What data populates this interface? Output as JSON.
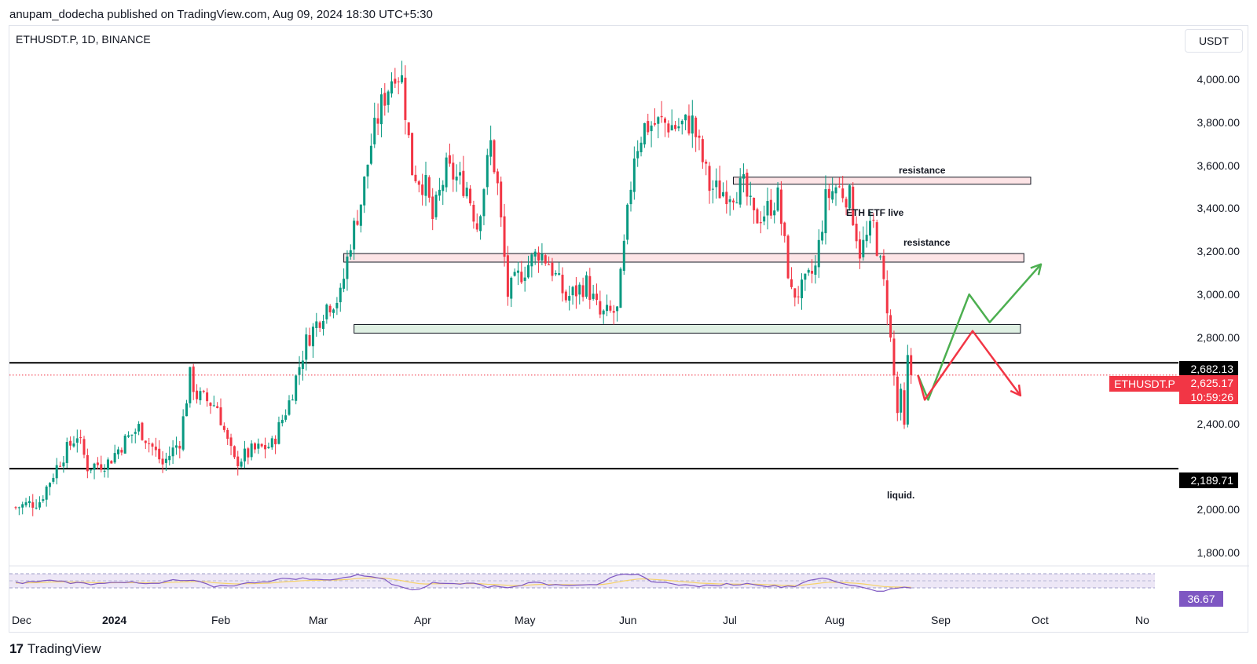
{
  "header": {
    "attribution": "anupam_dodecha published on TradingView.com, Aug 09, 2024 18:30 UTC+5:30"
  },
  "chart_header": {
    "symbol_info": "ETHUSDT.P, 1D, BINANCE",
    "currency_button": "USDT"
  },
  "price_tags": {
    "upper_line": "2,682.13",
    "current": "2,625.17",
    "countdown": "10:59:26",
    "symbol": "ETHUSDT.P",
    "lower_line": "2,189.71",
    "rsi": "36.67"
  },
  "annotations": {
    "resistance_top": "resistance",
    "etf": "ETH ETF live",
    "resistance_mid": "resistance",
    "liquid": "liquid."
  },
  "footer": {
    "logo_text": "TradingView"
  },
  "colors": {
    "up": "#089981",
    "down": "#f23645",
    "resistance_fill": "#fde4e6",
    "support_fill": "#dff0e3",
    "rsi_line": "#7e57c2",
    "rsi_ma": "#f5d26b",
    "arrow_up": "#4caf50",
    "arrow_down": "#f23645"
  },
  "chart_data": {
    "type": "candlestick",
    "symbol": "ETHUSDT.P",
    "timeframe": "1D",
    "exchange": "BINANCE",
    "ylim": [
      1700,
      4150
    ],
    "y_ticks": [
      1800,
      2000,
      2400,
      2800,
      3000,
      3200,
      3400,
      3600,
      3800,
      4000
    ],
    "y_tick_labels": [
      "1,800.00",
      "2,000.00",
      "2,400.00",
      "2,800.00",
      "3,000.00",
      "3,200.00",
      "3,400.00",
      "3,600.00",
      "3,800.00",
      "4,000.00"
    ],
    "x_ticks": [
      "Dec",
      "2024",
      "Feb",
      "Mar",
      "Apr",
      "May",
      "Jun",
      "Jul",
      "Aug",
      "Sep",
      "Oct",
      "No"
    ],
    "horizontal_lines": [
      2682.13,
      2189.71
    ],
    "current_price": 2625.17,
    "zones": [
      {
        "kind": "resistance",
        "from": 3515,
        "to": 3545,
        "start": "2024-06-18",
        "end": "2024-09-13"
      },
      {
        "kind": "resistance",
        "from": 3150,
        "to": 3190,
        "start": "2024-02-25",
        "end": "2024-09-11"
      },
      {
        "kind": "support",
        "from": 2820,
        "to": 2860,
        "start": "2024-02-28",
        "end": "2024-09-10"
      }
    ],
    "projections": [
      {
        "color": "green",
        "points": [
          [
            "2024-08-11",
            2625
          ],
          [
            "2024-08-14",
            2510
          ],
          [
            "2024-08-26",
            3000
          ],
          [
            "2024-09-01",
            2870
          ],
          [
            "2024-09-16",
            3140
          ]
        ]
      },
      {
        "color": "red",
        "points": [
          [
            "2024-08-11",
            2625
          ],
          [
            "2024-08-13",
            2510
          ],
          [
            "2024-08-27",
            2830
          ],
          [
            "2024-09-10",
            2530
          ]
        ]
      }
    ],
    "close_path": [
      [
        "2023-11-21",
        2010
      ],
      [
        "2023-11-28",
        2040
      ],
      [
        "2023-12-04",
        2230
      ],
      [
        "2023-12-09",
        2350
      ],
      [
        "2023-12-12",
        2200
      ],
      [
        "2023-12-18",
        2220
      ],
      [
        "2023-12-23",
        2320
      ],
      [
        "2023-12-27",
        2380
      ],
      [
        "2023-12-31",
        2290
      ],
      [
        "2024-01-03",
        2210
      ],
      [
        "2024-01-08",
        2320
      ],
      [
        "2024-01-11",
        2620
      ],
      [
        "2024-01-13",
        2530
      ],
      [
        "2024-01-19",
        2480
      ],
      [
        "2024-01-22",
        2310
      ],
      [
        "2024-01-24",
        2220
      ],
      [
        "2024-01-29",
        2270
      ],
      [
        "2024-02-04",
        2300
      ],
      [
        "2024-02-09",
        2500
      ],
      [
        "2024-02-14",
        2780
      ],
      [
        "2024-02-20",
        2950
      ],
      [
        "2024-02-24",
        2990
      ],
      [
        "2024-02-27",
        3250
      ],
      [
        "2024-03-01",
        3430
      ],
      [
        "2024-03-04",
        3700
      ],
      [
        "2024-03-07",
        3880
      ],
      [
        "2024-03-11",
        4050
      ],
      [
        "2024-03-13",
        4000
      ],
      [
        "2024-03-16",
        3580
      ],
      [
        "2024-03-20",
        3500
      ],
      [
        "2024-03-22",
        3350
      ],
      [
        "2024-03-26",
        3580
      ],
      [
        "2024-04-01",
        3500
      ],
      [
        "2024-04-04",
        3320
      ],
      [
        "2024-04-08",
        3700
      ],
      [
        "2024-04-10",
        3500
      ],
      [
        "2024-04-13",
        3000
      ],
      [
        "2024-04-16",
        3080
      ],
      [
        "2024-04-22",
        3200
      ],
      [
        "2024-04-25",
        3150
      ],
      [
        "2024-04-30",
        2980
      ],
      [
        "2024-05-06",
        3050
      ],
      [
        "2024-05-10",
        2900
      ],
      [
        "2024-05-15",
        2920
      ],
      [
        "2024-05-20",
        3660
      ],
      [
        "2024-05-23",
        3780
      ],
      [
        "2024-05-28",
        3800
      ],
      [
        "2024-06-01",
        3780
      ],
      [
        "2024-06-06",
        3800
      ],
      [
        "2024-06-11",
        3500
      ],
      [
        "2024-06-14",
        3480
      ],
      [
        "2024-06-18",
        3480
      ],
      [
        "2024-06-21",
        3500
      ],
      [
        "2024-06-24",
        3350
      ],
      [
        "2024-06-27",
        3380
      ],
      [
        "2024-07-01",
        3450
      ],
      [
        "2024-07-05",
        3000
      ],
      [
        "2024-07-08",
        3020
      ],
      [
        "2024-07-12",
        3120
      ],
      [
        "2024-07-15",
        3440
      ],
      [
        "2024-07-18",
        3500
      ],
      [
        "2024-07-22",
        3450
      ],
      [
        "2024-07-25",
        3200
      ],
      [
        "2024-07-29",
        3320
      ],
      [
        "2024-08-02",
        2950
      ],
      [
        "2024-08-05",
        2450
      ],
      [
        "2024-08-06",
        2520
      ],
      [
        "2024-08-07",
        2370
      ],
      [
        "2024-08-08",
        2690
      ],
      [
        "2024-08-09",
        2625
      ]
    ],
    "rsi": {
      "value": 36.67
    }
  }
}
